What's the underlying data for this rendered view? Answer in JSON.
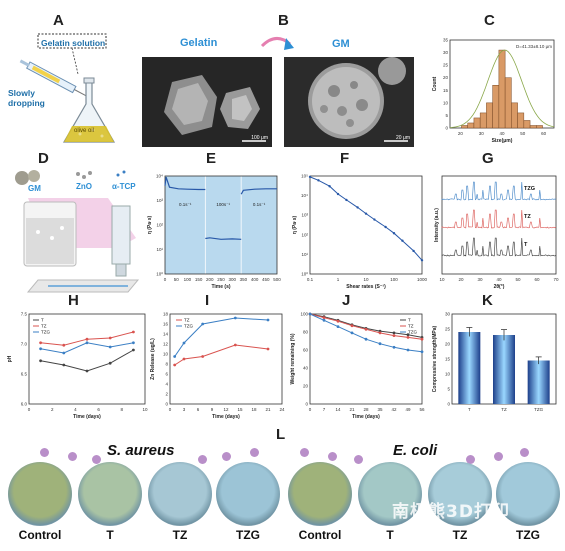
{
  "panels": {
    "A": {
      "label": "A",
      "callout": "Gelatin solution",
      "process": "Slowly\ndropping",
      "flask_text": "olive oil"
    },
    "B": {
      "label": "B",
      "left_title": "Gelatin",
      "right_title": "GM",
      "left_scale": "100 μm",
      "right_scale": "20 μm"
    },
    "C": {
      "label": "C"
    },
    "D": {
      "label": "D",
      "gm": "GM",
      "zno": "ZnO",
      "tcp": "α-TCP"
    },
    "E": {
      "label": "E"
    },
    "F": {
      "label": "F"
    },
    "G": {
      "label": "G"
    },
    "H": {
      "label": "H"
    },
    "I": {
      "label": "I"
    },
    "J": {
      "label": "J"
    },
    "K": {
      "label": "K"
    },
    "L": {
      "label": "L",
      "left_bacteria": "S. aureus",
      "right_bacteria": "E. coli",
      "dishes": [
        "Control",
        "T",
        "TZ",
        "TZG",
        "Control",
        "T",
        "TZ",
        "TZG"
      ],
      "watermark": "南极熊3D打印"
    }
  },
  "chart_data": [
    {
      "id": "C",
      "type": "bar",
      "annotation": "D=41.33±8.10 μm",
      "xlabel": "Size(μm)",
      "ylabel": "Count",
      "xticks": [
        "20",
        "30",
        "40",
        "50",
        "60"
      ],
      "yticks": [
        "0",
        "5",
        "10",
        "15",
        "20",
        "25",
        "30",
        "35"
      ],
      "x": [
        22,
        25,
        28,
        31,
        34,
        37,
        40,
        43,
        46,
        49,
        52,
        55,
        58
      ],
      "values": [
        1,
        2,
        4,
        6,
        10,
        17,
        31,
        20,
        10,
        6,
        3,
        1,
        1
      ],
      "ylim": [
        0,
        35
      ]
    },
    {
      "id": "E",
      "type": "line",
      "xlabel": "Time (s)",
      "ylabel": "η (Pa·s)",
      "xticks": [
        "0",
        "50",
        "100",
        "150",
        "200",
        "250",
        "300",
        "350",
        "400",
        "450",
        "500"
      ],
      "yticks": [
        "10⁰",
        "10¹",
        "10²",
        "10³",
        "10⁴"
      ],
      "annotations": [
        "0.1s⁻¹",
        "100s⁻¹",
        "0.1s⁻¹"
      ],
      "segments": [
        {
          "x": [
            0,
            5,
            20,
            60,
            100,
            150,
            180
          ],
          "y": [
            4000,
            9000,
            3500,
            3000,
            2900,
            2800,
            2800
          ]
        },
        {
          "x": [
            180,
            200,
            250,
            300,
            340
          ],
          "y": [
            28,
            30,
            26,
            27,
            26
          ]
        },
        {
          "x": [
            340,
            350,
            400,
            450,
            500
          ],
          "y": [
            1800,
            2600,
            2900,
            3000,
            3000
          ]
        }
      ],
      "xlim": [
        0,
        500
      ],
      "ylim_log": [
        0,
        4
      ]
    },
    {
      "id": "F",
      "type": "line",
      "xlabel": "Shear rates (S⁻¹)",
      "ylabel": "η (Pa·s)",
      "xticks": [
        "0.1",
        "1",
        "10",
        "100",
        "1000"
      ],
      "yticks": [
        "10⁰",
        "10¹",
        "10²",
        "10³",
        "10⁴",
        "10⁵"
      ],
      "x": [
        0.1,
        0.2,
        0.5,
        1,
        2,
        5,
        10,
        20,
        50,
        100,
        200,
        500,
        1000
      ],
      "y": [
        90000,
        60000,
        30000,
        12000,
        6000,
        2500,
        1200,
        600,
        250,
        120,
        50,
        15,
        5
      ],
      "xlim_log": [
        -1,
        3
      ],
      "ylim_log": [
        0,
        5
      ]
    },
    {
      "id": "G",
      "type": "line",
      "xlabel": "2θ(°)",
      "ylabel": "Intensity (a.u.)",
      "xticks": [
        "10",
        "20",
        "30",
        "40",
        "50",
        "60",
        "70"
      ],
      "series": [
        {
          "name": "TZG",
          "color": "#3b7fc4"
        },
        {
          "name": "TZ",
          "color": "#d9534f"
        },
        {
          "name": "T",
          "color": "#333333"
        }
      ]
    },
    {
      "id": "H",
      "type": "line",
      "xlabel": "Time (days)",
      "ylabel": "pH",
      "xticks": [
        "0",
        "2",
        "4",
        "6",
        "8",
        "10"
      ],
      "yticks": [
        "6.0",
        "6.5",
        "7.0",
        "7.5"
      ],
      "x": [
        1,
        3,
        5,
        7,
        9
      ],
      "series": [
        {
          "name": "T",
          "color": "#444444",
          "values": [
            6.72,
            6.65,
            6.55,
            6.68,
            6.9
          ]
        },
        {
          "name": "TZ",
          "color": "#d9534f",
          "values": [
            7.02,
            6.98,
            7.08,
            7.1,
            7.2
          ]
        },
        {
          "name": "TZG",
          "color": "#3b7fc4",
          "values": [
            6.92,
            6.85,
            7.02,
            6.95,
            7.02
          ]
        }
      ],
      "xlim": [
        0,
        10
      ],
      "ylim": [
        6.0,
        7.5
      ]
    },
    {
      "id": "I",
      "type": "line",
      "xlabel": "Time (days)",
      "ylabel": "Zn Release (ug/L)",
      "xticks": [
        "0",
        "3",
        "6",
        "9",
        "12",
        "15",
        "18",
        "21",
        "24"
      ],
      "yticks": [
        "0",
        "2",
        "4",
        "6",
        "8",
        "10",
        "12",
        "14",
        "16",
        "18"
      ],
      "x": [
        1,
        3,
        7,
        14,
        21
      ],
      "series": [
        {
          "name": "TZ",
          "color": "#d9534f",
          "values": [
            7.8,
            9.0,
            9.5,
            11.8,
            11.0
          ]
        },
        {
          "name": "TZG",
          "color": "#3b7fc4",
          "values": [
            9.5,
            12.2,
            16.0,
            17.2,
            16.8
          ]
        }
      ],
      "xlim": [
        0,
        24
      ],
      "ylim": [
        0,
        18
      ]
    },
    {
      "id": "J",
      "type": "line",
      "xlabel": "Time (days)",
      "ylabel": "Weight remaining (%)",
      "xticks": [
        "0",
        "7",
        "14",
        "21",
        "28",
        "35",
        "42",
        "49",
        "56"
      ],
      "yticks": [
        "0",
        "20",
        "40",
        "60",
        "80",
        "100"
      ],
      "x": [
        0,
        7,
        14,
        21,
        28,
        35,
        42,
        49,
        56
      ],
      "series": [
        {
          "name": "T",
          "color": "#444444",
          "values": [
            100,
            97,
            93,
            88,
            84,
            81,
            79,
            77,
            74
          ]
        },
        {
          "name": "TZ",
          "color": "#d9534f",
          "values": [
            100,
            96,
            92,
            87,
            83,
            79,
            76,
            74,
            72
          ]
        },
        {
          "name": "TZG",
          "color": "#3b7fc4",
          "values": [
            100,
            93,
            86,
            79,
            72,
            67,
            63,
            60,
            58
          ]
        }
      ],
      "xlim": [
        0,
        56
      ],
      "ylim": [
        0,
        100
      ]
    },
    {
      "id": "K",
      "type": "bar",
      "ylabel": "Compressive strength(MPa)",
      "categories": [
        "T",
        "TZ",
        "TZG"
      ],
      "values": [
        24,
        23,
        14.5
      ],
      "errors": [
        1.5,
        1.8,
        1.2
      ],
      "yticks": [
        "0",
        "5",
        "10",
        "15",
        "20",
        "25",
        "30"
      ],
      "ylim": [
        0,
        30
      ]
    }
  ]
}
